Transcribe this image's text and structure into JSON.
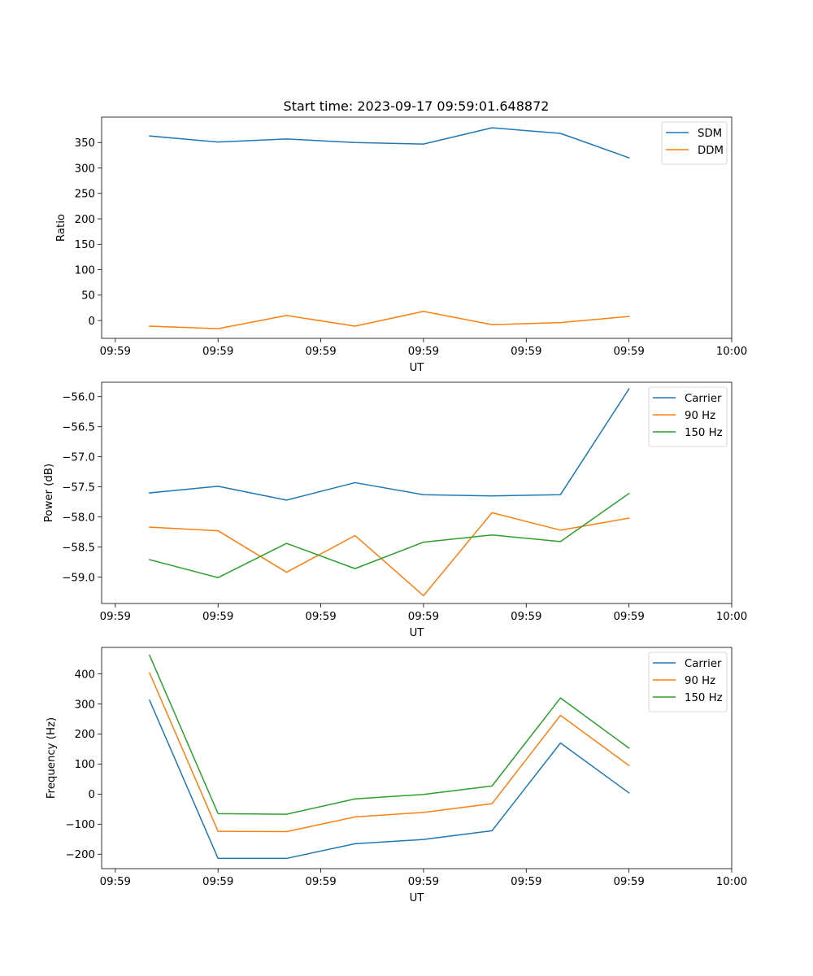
{
  "chart_data": [
    {
      "type": "line",
      "title": "Start time: 2023-09-17 09:59:01.648872",
      "xlabel": "UT",
      "ylabel": "Ratio",
      "xlim": [
        -0.7,
        8.5
      ],
      "x": [
        0,
        1,
        2,
        3,
        4,
        5,
        6,
        7
      ],
      "xticks": [
        -0.5,
        1,
        2.5,
        4,
        5.5,
        7,
        8.5
      ],
      "xtick_labels": [
        "09:59",
        "09:59",
        "09:59",
        "09:59",
        "09:59",
        "09:59",
        "10:00"
      ],
      "ylim": [
        -35,
        400
      ],
      "yticks": [
        0,
        50,
        100,
        150,
        200,
        250,
        300,
        350
      ],
      "ytick_labels": [
        "0",
        "50",
        "100",
        "150",
        "200",
        "250",
        "300",
        "350"
      ],
      "legend": "top-right",
      "series": [
        {
          "name": "SDM",
          "color": "#1f77b4",
          "values": [
            363,
            351,
            357,
            350,
            347,
            379,
            368,
            320
          ]
        },
        {
          "name": "DDM",
          "color": "#ff7f0e",
          "values": [
            -11,
            -16,
            10,
            -11,
            18,
            -8,
            -4,
            8
          ]
        }
      ]
    },
    {
      "type": "line",
      "title": "",
      "xlabel": "UT",
      "ylabel": "Power (dB)",
      "xlim": [
        -0.7,
        8.5
      ],
      "x": [
        0,
        1,
        2,
        3,
        4,
        5,
        6,
        7
      ],
      "xticks": [
        -0.5,
        1,
        2.5,
        4,
        5.5,
        7,
        8.5
      ],
      "xtick_labels": [
        "09:59",
        "09:59",
        "09:59",
        "09:59",
        "09:59",
        "09:59",
        "10:00"
      ],
      "ylim": [
        -59.44,
        -55.76
      ],
      "yticks": [
        -59.0,
        -58.5,
        -58.0,
        -57.5,
        -57.0,
        -56.5,
        -56.0
      ],
      "ytick_labels": [
        "−59.0",
        "−58.5",
        "−58.0",
        "−57.5",
        "−57.0",
        "−56.5",
        "−56.0"
      ],
      "legend": "top-right",
      "series": [
        {
          "name": "Carrier",
          "color": "#1f77b4",
          "values": [
            -57.6,
            -57.49,
            -57.72,
            -57.43,
            -57.63,
            -57.65,
            -57.63,
            -55.87
          ]
        },
        {
          "name": "90 Hz",
          "color": "#ff7f0e",
          "values": [
            -58.17,
            -58.23,
            -58.92,
            -58.31,
            -59.31,
            -57.93,
            -58.22,
            -58.02
          ]
        },
        {
          "name": "150 Hz",
          "color": "#2ca02c",
          "values": [
            -58.71,
            -59.01,
            -58.44,
            -58.86,
            -58.42,
            -58.3,
            -58.41,
            -57.61
          ]
        }
      ]
    },
    {
      "type": "line",
      "title": "",
      "xlabel": "UT",
      "ylabel": "Frequency (Hz)",
      "xlim": [
        -0.7,
        8.5
      ],
      "x": [
        0,
        1,
        2,
        3,
        4,
        5,
        6,
        7
      ],
      "xticks": [
        -0.5,
        1,
        2.5,
        4,
        5.5,
        7,
        8.5
      ],
      "xtick_labels": [
        "09:59",
        "09:59",
        "09:59",
        "09:59",
        "09:59",
        "09:59",
        "10:00"
      ],
      "ylim": [
        -248,
        488
      ],
      "yticks": [
        -200,
        -100,
        0,
        100,
        200,
        300,
        400
      ],
      "ytick_labels": [
        "−200",
        "−100",
        "0",
        "100",
        "200",
        "300",
        "400"
      ],
      "legend": "top-right",
      "series": [
        {
          "name": "Carrier",
          "color": "#1f77b4",
          "values": [
            312,
            -214,
            -214,
            -165,
            -151,
            -122,
            170,
            4
          ]
        },
        {
          "name": "90 Hz",
          "color": "#ff7f0e",
          "values": [
            403,
            -124,
            -125,
            -76,
            -61,
            -32,
            262,
            95
          ]
        },
        {
          "name": "150 Hz",
          "color": "#2ca02c",
          "values": [
            462,
            -65,
            -67,
            -16,
            -1,
            27,
            320,
            153
          ]
        }
      ]
    }
  ]
}
